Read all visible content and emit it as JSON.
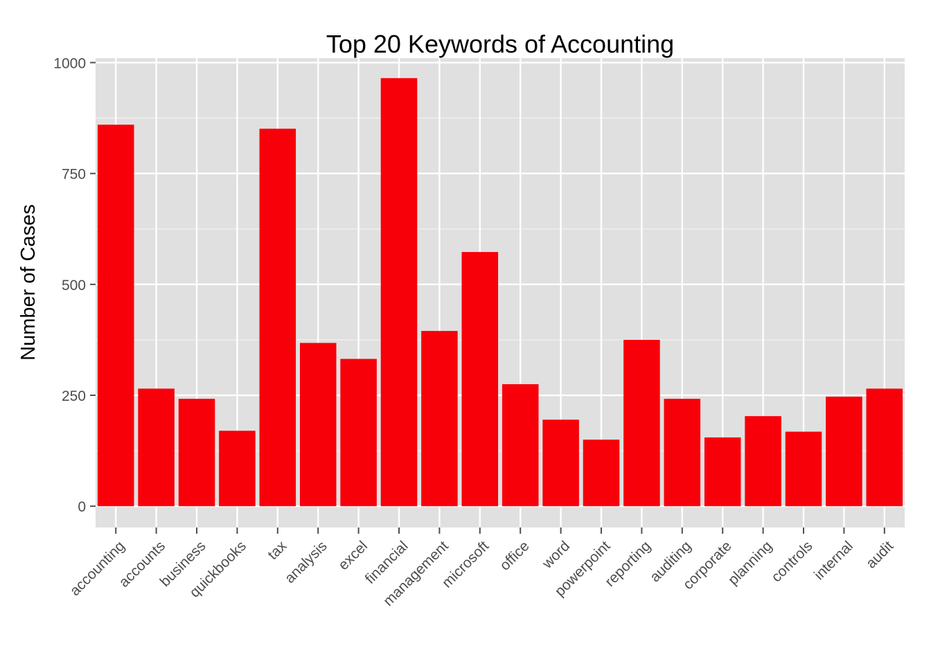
{
  "chart_data": {
    "type": "bar",
    "title": "Top 20 Keywords of Accounting",
    "xlabel": "",
    "ylabel": "Number of Cases",
    "ylim": [
      -48,
      1010
    ],
    "yticks": [
      0,
      250,
      500,
      750,
      1000
    ],
    "grid": true,
    "bar_color": "#f8000a",
    "panel_color": "#e0e0e0",
    "grid_color": "#ffffff",
    "categories": [
      "accounting",
      "accounts",
      "business",
      "quickbooks",
      "tax",
      "analysis",
      "excel",
      "financial",
      "management",
      "microsoft",
      "office",
      "word",
      "powerpoint",
      "reporting",
      "auditing",
      "corporate",
      "planning",
      "controls",
      "internal",
      "audit"
    ],
    "values": [
      860,
      265,
      242,
      170,
      851,
      368,
      332,
      965,
      395,
      573,
      275,
      195,
      150,
      375,
      242,
      155,
      203,
      168,
      247,
      265
    ]
  }
}
